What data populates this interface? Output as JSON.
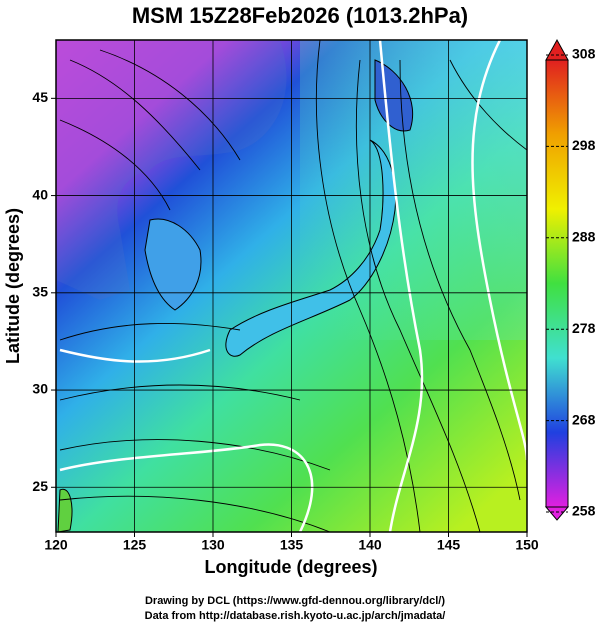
{
  "chart_data": {
    "type": "map",
    "title": "MSM 15Z28Feb2026 (1013.2hPa)",
    "x_label": "Longitude (degrees)",
    "y_label": "Latitude (degrees)",
    "xlim": [
      120,
      150
    ],
    "xticks": [
      120,
      125,
      130,
      135,
      140,
      145,
      150
    ],
    "ylim": [
      22.7,
      48
    ],
    "yticks": [
      25,
      30,
      35,
      40,
      45
    ],
    "grid": true,
    "colorbar": {
      "lim": [
        258,
        308
      ],
      "ticks": [
        258,
        268,
        278,
        288,
        298,
        308
      ],
      "colors": [
        "#e020e0",
        "#2040e0",
        "#40e0d0",
        "#40e040",
        "#f0f000",
        "#f0a000",
        "#e02020"
      ]
    },
    "footer": [
      "Drawing by DCL (https://www.gfd-dennou.org/library/dcl/)",
      "Data from http://database.rish.kyoto-u.ac.jp/arch/jmadata/"
    ]
  }
}
